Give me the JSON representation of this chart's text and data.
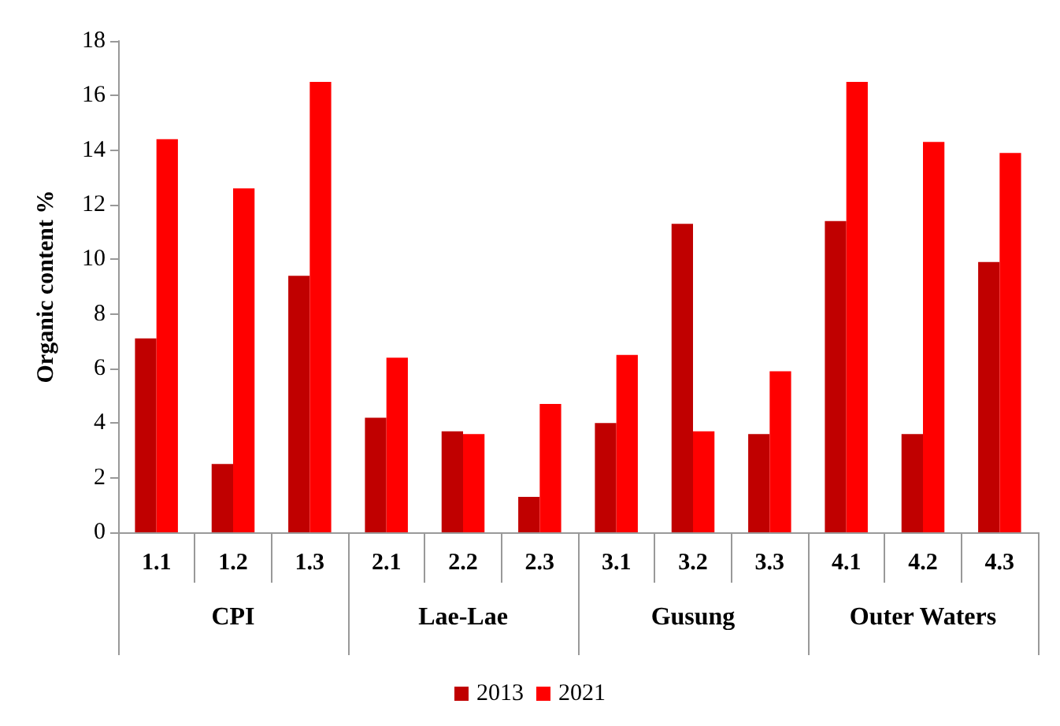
{
  "chart_data": {
    "type": "bar",
    "ylabel": "Organic content %",
    "categories": [
      "1.1",
      "1.2",
      "1.3",
      "2.1",
      "2.2",
      "2.3",
      "3.1",
      "3.2",
      "3.3",
      "4.1",
      "4.2",
      "4.3"
    ],
    "series": [
      {
        "name": "2013",
        "color": "#c00000",
        "values": [
          7.1,
          2.5,
          9.4,
          4.2,
          3.7,
          1.3,
          4.0,
          11.3,
          3.6,
          11.4,
          3.6,
          9.9
        ]
      },
      {
        "name": "2021",
        "color": "#ff0000",
        "values": [
          14.4,
          12.6,
          16.5,
          6.4,
          3.6,
          4.7,
          6.5,
          3.7,
          5.9,
          16.5,
          14.3,
          13.9
        ]
      }
    ],
    "annotations": [
      "CPI",
      "Lae-Lae",
      "Gusung",
      "Outer Waters"
    ],
    "ylim": [
      0,
      18
    ],
    "yticks": [
      0,
      2,
      4,
      6,
      8,
      10,
      12,
      14,
      16,
      18
    ],
    "grid": false,
    "legend": "bottom"
  }
}
